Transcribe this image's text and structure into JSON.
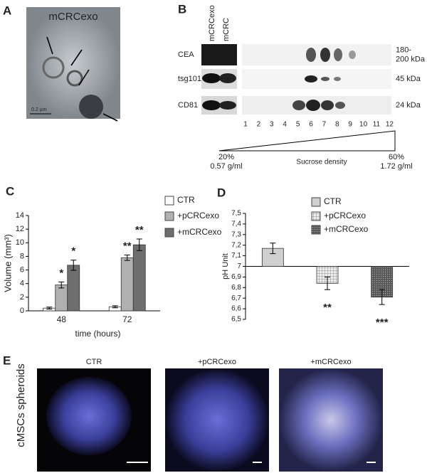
{
  "panel_a": {
    "label": "A",
    "title": "mCRCexo",
    "scale": "0.2 µm"
  },
  "panel_b": {
    "label": "B",
    "lanes": [
      "mCRCexo",
      "mCRC"
    ],
    "rows": [
      {
        "name": "CEA",
        "size": [
          "180-",
          "200 kDa"
        ]
      },
      {
        "name": "tsg101",
        "size": [
          "45 kDa"
        ]
      },
      {
        "name": "CD81",
        "size": [
          "24 kDa"
        ]
      }
    ],
    "fractions": [
      1,
      2,
      3,
      4,
      5,
      6,
      7,
      8,
      9,
      10,
      11,
      12
    ],
    "low": "20%",
    "low_density": "0.57 g/ml",
    "axis_label": "Sucrose density",
    "high": "60%",
    "high_density": "1.72 g/ml"
  },
  "chart_data": [
    {
      "type": "bar",
      "label": "C",
      "categories": [
        "48",
        "72"
      ],
      "series": [
        {
          "name": "CTR",
          "color": "#ffffff",
          "values": [
            0.4,
            0.6
          ],
          "errors": [
            0.15,
            0.15
          ]
        },
        {
          "name": "+pCRCexo",
          "color": "#b0b0b0",
          "values": [
            3.8,
            7.8
          ],
          "errors": [
            0.45,
            0.4
          ],
          "significance": [
            "*",
            "**"
          ]
        },
        {
          "name": "+mCRCexo",
          "color": "#6e6e6e",
          "values": [
            6.7,
            9.7
          ],
          "errors": [
            0.75,
            0.85
          ],
          "significance": [
            "*",
            "**"
          ]
        }
      ],
      "y_label": "Volume (mm³)",
      "x_label": "time (hours)",
      "ylim": [
        0,
        14
      ],
      "yticks": [
        0,
        2,
        4,
        6,
        8,
        10,
        12,
        14
      ]
    },
    {
      "type": "bar",
      "label": "D",
      "baseline": 7,
      "series": [
        {
          "name": "CTR",
          "color": "#cfcfcf",
          "values": [
            7.17
          ],
          "errors": [
            0.05
          ]
        },
        {
          "name": "+pCRCexo",
          "color": "url(#grid)",
          "values": [
            6.84
          ],
          "errors": [
            0.06
          ],
          "significance": [
            "**"
          ]
        },
        {
          "name": "+mCRCexo",
          "color": "url(#dots)",
          "values": [
            6.71
          ],
          "errors": [
            0.07
          ],
          "significance": [
            "***"
          ]
        }
      ],
      "y_label": "pH Unit",
      "ylim": [
        6.5,
        7.5
      ],
      "yticks": [
        {
          "value": 6.5,
          "label": "6,5"
        },
        {
          "value": 6.6,
          "label": "6,6"
        },
        {
          "value": 6.7,
          "label": "6,7"
        },
        {
          "value": 6.8,
          "label": "6,8"
        },
        {
          "value": 6.9,
          "label": "6,9"
        },
        7,
        {
          "value": 7.1,
          "label": "7,1"
        },
        {
          "value": 7.2,
          "label": "7,2"
        },
        {
          "value": 7.3,
          "label": "7,3"
        },
        {
          "value": 7.4,
          "label": "7,4"
        },
        {
          "value": 7.5,
          "label": "7,5"
        }
      ]
    }
  ],
  "panel_e": {
    "label": "E",
    "side_label": "cMSCs spheroids",
    "images": [
      "CTR",
      "+pCRCexo",
      "+mCRCexo"
    ]
  }
}
